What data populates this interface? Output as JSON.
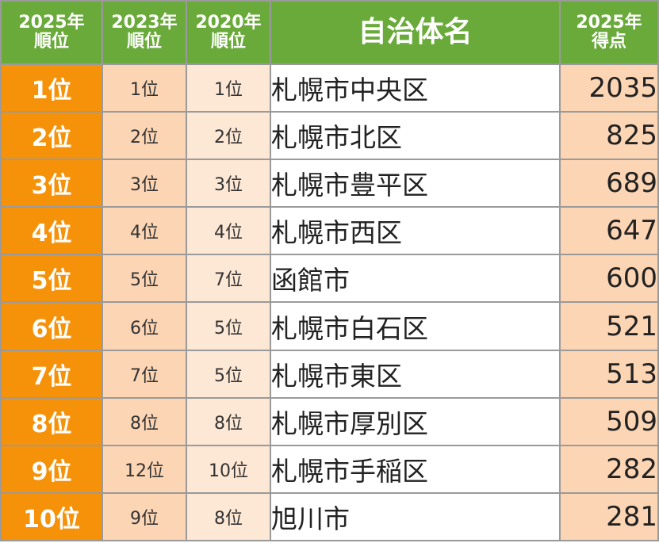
{
  "headers": {
    "rank2025": [
      "2025年",
      "順位"
    ],
    "rank2023": [
      "2023年",
      "順位"
    ],
    "rank2020": [
      "2020年",
      "順位"
    ],
    "name": "自治体名",
    "score": [
      "2025年",
      "得点"
    ]
  },
  "rows": [
    {
      "rank2025": "1位",
      "rank2023": "1位",
      "rank2020": "1位",
      "name": "札幌市中央区",
      "score": "2035"
    },
    {
      "rank2025": "2位",
      "rank2023": "2位",
      "rank2020": "2位",
      "name": "札幌市北区",
      "score": "825"
    },
    {
      "rank2025": "3位",
      "rank2023": "3位",
      "rank2020": "3位",
      "name": "札幌市豊平区",
      "score": "689"
    },
    {
      "rank2025": "4位",
      "rank2023": "4位",
      "rank2020": "4位",
      "name": "札幌市西区",
      "score": "647"
    },
    {
      "rank2025": "5位",
      "rank2023": "5位",
      "rank2020": "7位",
      "name": "函館市",
      "score": "600"
    },
    {
      "rank2025": "6位",
      "rank2023": "6位",
      "rank2020": "5位",
      "name": "札幌市白石区",
      "score": "521"
    },
    {
      "rank2025": "7位",
      "rank2023": "7位",
      "rank2020": "5位",
      "name": "札幌市東区",
      "score": "513"
    },
    {
      "rank2025": "8位",
      "rank2023": "8位",
      "rank2020": "8位",
      "name": "札幌市厚別区",
      "score": "509"
    },
    {
      "rank2025": "9位",
      "rank2023": "12位",
      "rank2020": "10位",
      "name": "札幌市手稲区",
      "score": "282"
    },
    {
      "rank2025": "10位",
      "rank2023": "9位",
      "rank2020": "8位",
      "name": "旭川市",
      "score": "281"
    }
  ],
  "colors": {
    "header_bg": "#6aaa3a",
    "rank2025_bg": "#f5920a",
    "rank2023_bg": "#fcd5b4",
    "rank2020_bg": "#fde7d5",
    "score_bg": "#fcd5b4",
    "border": "#9a9a9a"
  }
}
